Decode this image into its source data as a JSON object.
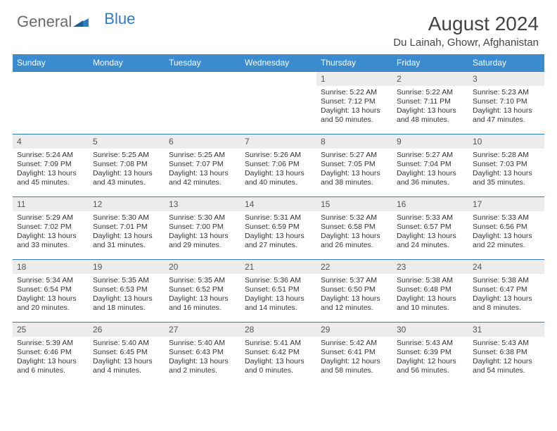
{
  "logo": {
    "text_gray": "General",
    "text_blue": "Blue"
  },
  "title": "August 2024",
  "location": "Du Lainah, Ghowr, Afghanistan",
  "colors": {
    "header_bg": "#3a8bcf",
    "header_text": "#ffffff",
    "daynum_bg": "#ececec",
    "border": "#2f7cc4",
    "title_color": "#444444",
    "logo_gray": "#6b6b6b",
    "logo_blue": "#2f7cc4"
  },
  "day_names": [
    "Sunday",
    "Monday",
    "Tuesday",
    "Wednesday",
    "Thursday",
    "Friday",
    "Saturday"
  ],
  "weeks": [
    [
      {
        "day": "",
        "lines": []
      },
      {
        "day": "",
        "lines": []
      },
      {
        "day": "",
        "lines": []
      },
      {
        "day": "",
        "lines": []
      },
      {
        "day": "1",
        "lines": [
          "Sunrise: 5:22 AM",
          "Sunset: 7:12 PM",
          "Daylight: 13 hours and 50 minutes."
        ]
      },
      {
        "day": "2",
        "lines": [
          "Sunrise: 5:22 AM",
          "Sunset: 7:11 PM",
          "Daylight: 13 hours and 48 minutes."
        ]
      },
      {
        "day": "3",
        "lines": [
          "Sunrise: 5:23 AM",
          "Sunset: 7:10 PM",
          "Daylight: 13 hours and 47 minutes."
        ]
      }
    ],
    [
      {
        "day": "4",
        "lines": [
          "Sunrise: 5:24 AM",
          "Sunset: 7:09 PM",
          "Daylight: 13 hours and 45 minutes."
        ]
      },
      {
        "day": "5",
        "lines": [
          "Sunrise: 5:25 AM",
          "Sunset: 7:08 PM",
          "Daylight: 13 hours and 43 minutes."
        ]
      },
      {
        "day": "6",
        "lines": [
          "Sunrise: 5:25 AM",
          "Sunset: 7:07 PM",
          "Daylight: 13 hours and 42 minutes."
        ]
      },
      {
        "day": "7",
        "lines": [
          "Sunrise: 5:26 AM",
          "Sunset: 7:06 PM",
          "Daylight: 13 hours and 40 minutes."
        ]
      },
      {
        "day": "8",
        "lines": [
          "Sunrise: 5:27 AM",
          "Sunset: 7:05 PM",
          "Daylight: 13 hours and 38 minutes."
        ]
      },
      {
        "day": "9",
        "lines": [
          "Sunrise: 5:27 AM",
          "Sunset: 7:04 PM",
          "Daylight: 13 hours and 36 minutes."
        ]
      },
      {
        "day": "10",
        "lines": [
          "Sunrise: 5:28 AM",
          "Sunset: 7:03 PM",
          "Daylight: 13 hours and 35 minutes."
        ]
      }
    ],
    [
      {
        "day": "11",
        "lines": [
          "Sunrise: 5:29 AM",
          "Sunset: 7:02 PM",
          "Daylight: 13 hours and 33 minutes."
        ]
      },
      {
        "day": "12",
        "lines": [
          "Sunrise: 5:30 AM",
          "Sunset: 7:01 PM",
          "Daylight: 13 hours and 31 minutes."
        ]
      },
      {
        "day": "13",
        "lines": [
          "Sunrise: 5:30 AM",
          "Sunset: 7:00 PM",
          "Daylight: 13 hours and 29 minutes."
        ]
      },
      {
        "day": "14",
        "lines": [
          "Sunrise: 5:31 AM",
          "Sunset: 6:59 PM",
          "Daylight: 13 hours and 27 minutes."
        ]
      },
      {
        "day": "15",
        "lines": [
          "Sunrise: 5:32 AM",
          "Sunset: 6:58 PM",
          "Daylight: 13 hours and 26 minutes."
        ]
      },
      {
        "day": "16",
        "lines": [
          "Sunrise: 5:33 AM",
          "Sunset: 6:57 PM",
          "Daylight: 13 hours and 24 minutes."
        ]
      },
      {
        "day": "17",
        "lines": [
          "Sunrise: 5:33 AM",
          "Sunset: 6:56 PM",
          "Daylight: 13 hours and 22 minutes."
        ]
      }
    ],
    [
      {
        "day": "18",
        "lines": [
          "Sunrise: 5:34 AM",
          "Sunset: 6:54 PM",
          "Daylight: 13 hours and 20 minutes."
        ]
      },
      {
        "day": "19",
        "lines": [
          "Sunrise: 5:35 AM",
          "Sunset: 6:53 PM",
          "Daylight: 13 hours and 18 minutes."
        ]
      },
      {
        "day": "20",
        "lines": [
          "Sunrise: 5:35 AM",
          "Sunset: 6:52 PM",
          "Daylight: 13 hours and 16 minutes."
        ]
      },
      {
        "day": "21",
        "lines": [
          "Sunrise: 5:36 AM",
          "Sunset: 6:51 PM",
          "Daylight: 13 hours and 14 minutes."
        ]
      },
      {
        "day": "22",
        "lines": [
          "Sunrise: 5:37 AM",
          "Sunset: 6:50 PM",
          "Daylight: 13 hours and 12 minutes."
        ]
      },
      {
        "day": "23",
        "lines": [
          "Sunrise: 5:38 AM",
          "Sunset: 6:48 PM",
          "Daylight: 13 hours and 10 minutes."
        ]
      },
      {
        "day": "24",
        "lines": [
          "Sunrise: 5:38 AM",
          "Sunset: 6:47 PM",
          "Daylight: 13 hours and 8 minutes."
        ]
      }
    ],
    [
      {
        "day": "25",
        "lines": [
          "Sunrise: 5:39 AM",
          "Sunset: 6:46 PM",
          "Daylight: 13 hours and 6 minutes."
        ]
      },
      {
        "day": "26",
        "lines": [
          "Sunrise: 5:40 AM",
          "Sunset: 6:45 PM",
          "Daylight: 13 hours and 4 minutes."
        ]
      },
      {
        "day": "27",
        "lines": [
          "Sunrise: 5:40 AM",
          "Sunset: 6:43 PM",
          "Daylight: 13 hours and 2 minutes."
        ]
      },
      {
        "day": "28",
        "lines": [
          "Sunrise: 5:41 AM",
          "Sunset: 6:42 PM",
          "Daylight: 13 hours and 0 minutes."
        ]
      },
      {
        "day": "29",
        "lines": [
          "Sunrise: 5:42 AM",
          "Sunset: 6:41 PM",
          "Daylight: 12 hours and 58 minutes."
        ]
      },
      {
        "day": "30",
        "lines": [
          "Sunrise: 5:43 AM",
          "Sunset: 6:39 PM",
          "Daylight: 12 hours and 56 minutes."
        ]
      },
      {
        "day": "31",
        "lines": [
          "Sunrise: 5:43 AM",
          "Sunset: 6:38 PM",
          "Daylight: 12 hours and 54 minutes."
        ]
      }
    ]
  ]
}
